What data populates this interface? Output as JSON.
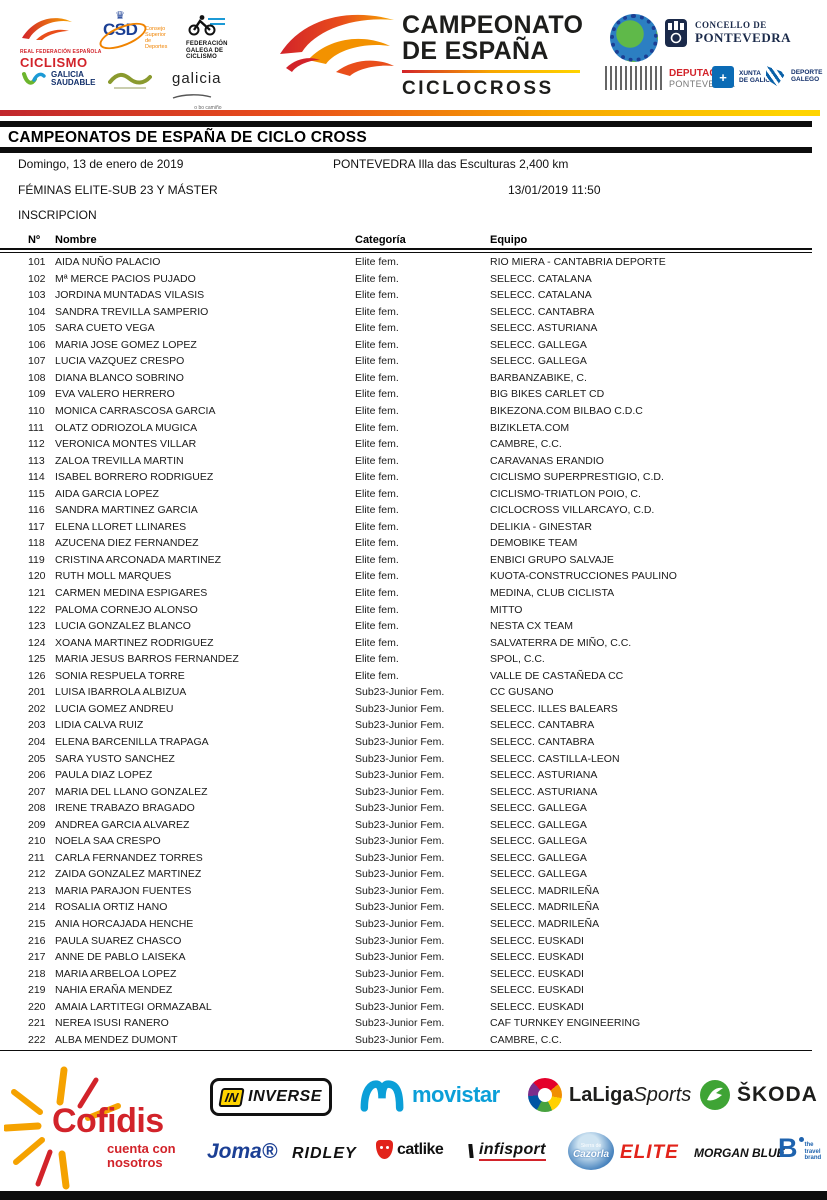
{
  "title_bar": "CAMPEONATOS DE ESPAÑA DE CICLO CROSS",
  "header": {
    "center": {
      "line1": "CAMPEONATO",
      "line2": "DE ESPAÑA",
      "subtitle": "CICLOCROSS"
    },
    "left": {
      "rfec_small": "REAL FEDERACIÓN ESPAÑOLA",
      "rfec_name": "CICLISMO",
      "csd_acronym": "CSD",
      "csd_crown": "♛",
      "csd_name": "Consejo Superior de Deportes",
      "fgc_line1": "FEDERACIÓN",
      "fgc_line2": "GALEGA DE",
      "fgc_line3": "CICLISMO",
      "galicia_saudable_line1": "GALICIA",
      "galicia_saudable_line2": "SAUDABLE",
      "galicia_word": "galicia",
      "galicia_slogan": "o bo camiño"
    },
    "right": {
      "concello_line1": "CONCELLO DE",
      "concello_line2": "PONTEVEDRA",
      "deputacion_line1": "DEPUTACIÓN",
      "deputacion_line2": "PONTEVEDRA",
      "xunta_plus": "+",
      "xunta_line1": "XUNTA",
      "xunta_line2": "DE GALICIA",
      "deporte_line1": "DEPORTE",
      "deporte_line2": "GALEGO"
    }
  },
  "event": {
    "date": "Domingo, 13 de enero de 2019",
    "venue": "PONTEVEDRA Illa das Esculturas 2,400 km",
    "category": "FÉMINAS ELITE-SUB 23 Y MÁSTER",
    "datetime": "13/01/2019 11:50",
    "section": "INSCRIPCION"
  },
  "table": {
    "columns": [
      "Nº",
      "Nombre",
      "Categoría",
      "Equipo"
    ],
    "rows": [
      [
        "101",
        "AIDA NUÑO PALACIO",
        "Elite fem.",
        "RIO MIERA - CANTABRIA DEPORTE"
      ],
      [
        "102",
        "Mª MERCE PACIOS PUJADO",
        "Elite fem.",
        "SELECC. CATALANA"
      ],
      [
        "103",
        "JORDINA MUNTADAS VILASIS",
        "Elite fem.",
        "SELECC. CATALANA"
      ],
      [
        "104",
        "SANDRA TREVILLA SAMPERIO",
        "Elite fem.",
        "SELECC. CANTABRA"
      ],
      [
        "105",
        "SARA CUETO VEGA",
        "Elite fem.",
        "SELECC. ASTURIANA"
      ],
      [
        "106",
        "MARIA JOSE GOMEZ LOPEZ",
        "Elite fem.",
        "SELECC. GALLEGA"
      ],
      [
        "107",
        "LUCIA VAZQUEZ CRESPO",
        "Elite fem.",
        "SELECC. GALLEGA"
      ],
      [
        "108",
        "DIANA BLANCO SOBRINO",
        "Elite fem.",
        "BARBANZABIKE, C."
      ],
      [
        "109",
        "EVA VALERO HERRERO",
        "Elite fem.",
        "BIG BIKES CARLET CD"
      ],
      [
        "110",
        "MONICA CARRASCOSA GARCIA",
        "Elite fem.",
        "BIKEZONA.COM BILBAO C.D.C"
      ],
      [
        "111",
        "OLATZ ODRIOZOLA MUGICA",
        "Elite fem.",
        "BIZIKLETA.COM"
      ],
      [
        "112",
        "VERONICA MONTES VILLAR",
        "Elite fem.",
        "CAMBRE, C.C."
      ],
      [
        "113",
        "ZALOA TREVILLA MARTIN",
        "Elite fem.",
        "CARAVANAS ERANDIO"
      ],
      [
        "114",
        "ISABEL BORRERO RODRIGUEZ",
        "Elite fem.",
        "CICLISMO SUPERPRESTIGIO, C.D."
      ],
      [
        "115",
        "AIDA GARCIA LOPEZ",
        "Elite fem.",
        "CICLISMO-TRIATLON POIO, C."
      ],
      [
        "116",
        "SANDRA MARTINEZ GARCIA",
        "Elite fem.",
        "CICLOCROSS VILLARCAYO, C.D."
      ],
      [
        "117",
        "ELENA LLORET LLINARES",
        "Elite fem.",
        "DELIKIA - GINESTAR"
      ],
      [
        "118",
        "AZUCENA DIEZ FERNANDEZ",
        "Elite fem.",
        "DEMOBIKE TEAM"
      ],
      [
        "119",
        "CRISTINA ARCONADA MARTINEZ",
        "Elite fem.",
        "ENBICI GRUPO SALVAJE"
      ],
      [
        "120",
        "RUTH MOLL MARQUES",
        "Elite fem.",
        "KUOTA-CONSTRUCCIONES PAULINO"
      ],
      [
        "121",
        "CARMEN MEDINA ESPIGARES",
        "Elite fem.",
        "MEDINA, CLUB CICLISTA"
      ],
      [
        "122",
        "PALOMA CORNEJO ALONSO",
        "Elite fem.",
        "MITTO"
      ],
      [
        "123",
        "LUCIA GONZALEZ BLANCO",
        "Elite fem.",
        "NESTA CX TEAM"
      ],
      [
        "124",
        "XOANA MARTINEZ RODRIGUEZ",
        "Elite fem.",
        "SALVATERRA DE MIÑO, C.C."
      ],
      [
        "125",
        "MARIA JESUS BARROS FERNANDEZ",
        "Elite fem.",
        "SPOL, C.C."
      ],
      [
        "126",
        "SONIA RESPUELA TORRE",
        "Elite fem.",
        "VALLE DE CASTAÑEDA CC"
      ],
      [
        "201",
        "LUISA IBARROLA ALBIZUA",
        "Sub23-Junior Fem.",
        "CC GUSANO"
      ],
      [
        "202",
        "LUCIA GOMEZ ANDREU",
        "Sub23-Junior Fem.",
        "SELECC. ILLES BALEARS"
      ],
      [
        "203",
        "LIDIA CALVA RUIZ",
        "Sub23-Junior Fem.",
        "SELECC. CANTABRA"
      ],
      [
        "204",
        "ELENA BARCENILLA TRAPAGA",
        "Sub23-Junior Fem.",
        "SELECC. CANTABRA"
      ],
      [
        "205",
        "SARA YUSTO SANCHEZ",
        "Sub23-Junior Fem.",
        "SELECC. CASTILLA-LEON"
      ],
      [
        "206",
        "PAULA DIAZ LOPEZ",
        "Sub23-Junior Fem.",
        "SELECC. ASTURIANA"
      ],
      [
        "207",
        "MARIA DEL LLANO GONZALEZ",
        "Sub23-Junior Fem.",
        "SELECC. ASTURIANA"
      ],
      [
        "208",
        "IRENE TRABAZO BRAGADO",
        "Sub23-Junior Fem.",
        "SELECC. GALLEGA"
      ],
      [
        "209",
        "ANDREA GARCIA ALVAREZ",
        "Sub23-Junior Fem.",
        "SELECC. GALLEGA"
      ],
      [
        "210",
        "NOELA SAA CRESPO",
        "Sub23-Junior Fem.",
        "SELECC. GALLEGA"
      ],
      [
        "211",
        "CARLA FERNANDEZ TORRES",
        "Sub23-Junior Fem.",
        "SELECC. GALLEGA"
      ],
      [
        "212",
        "ZAIDA GONZALEZ MARTINEZ",
        "Sub23-Junior Fem.",
        "SELECC. GALLEGA"
      ],
      [
        "213",
        "MARIA PARAJON FUENTES",
        "Sub23-Junior Fem.",
        "SELECC. MADRILEÑA"
      ],
      [
        "214",
        "ROSALIA ORTIZ HANO",
        "Sub23-Junior Fem.",
        "SELECC. MADRILEÑA"
      ],
      [
        "215",
        "ANIA HORCAJADA HENCHE",
        "Sub23-Junior Fem.",
        "SELECC. MADRILEÑA"
      ],
      [
        "216",
        "PAULA SUAREZ CHASCO",
        "Sub23-Junior Fem.",
        "SELECC. EUSKADI"
      ],
      [
        "217",
        "ANNE DE PABLO LAISEKA",
        "Sub23-Junior Fem.",
        "SELECC. EUSKADI"
      ],
      [
        "218",
        "MARIA ARBELOA LOPEZ",
        "Sub23-Junior Fem.",
        "SELECC. EUSKADI"
      ],
      [
        "219",
        "NAHIA ERAÑA MENDEZ",
        "Sub23-Junior Fem.",
        "SELECC. EUSKADI"
      ],
      [
        "220",
        "AMAIA LARTITEGI ORMAZABAL",
        "Sub23-Junior Fem.",
        "SELECC. EUSKADI"
      ],
      [
        "221",
        "NEREA ISUSI RANERO",
        "Sub23-Junior Fem.",
        "CAF TURNKEY ENGINEERING"
      ],
      [
        "222",
        "ALBA MENDEZ DUMONT",
        "Sub23-Junior Fem.",
        "CAMBRE, C.C."
      ]
    ]
  },
  "sponsors": {
    "cofidis": {
      "name": "Cofidis",
      "tagline1": "cuenta con",
      "tagline2": "nosotros"
    },
    "inverse": {
      "badge": "IN",
      "name": "INVERSE"
    },
    "movistar": "movistar",
    "laliga": {
      "bold": "LaLiga",
      "light": "Sports"
    },
    "skoda": "ŠKODA",
    "joma": "Joma®",
    "ridley": "RIDLEY",
    "catlike": "catlike",
    "infisport": "infisport",
    "cazorla": {
      "small": "Sierra de",
      "name": "Cazorla"
    },
    "elite": "ELITE",
    "morgan_blue": "MORGAN BLUE",
    "btravel": {
      "letter": "B",
      "line1": "the travel",
      "line2": "brand"
    }
  }
}
